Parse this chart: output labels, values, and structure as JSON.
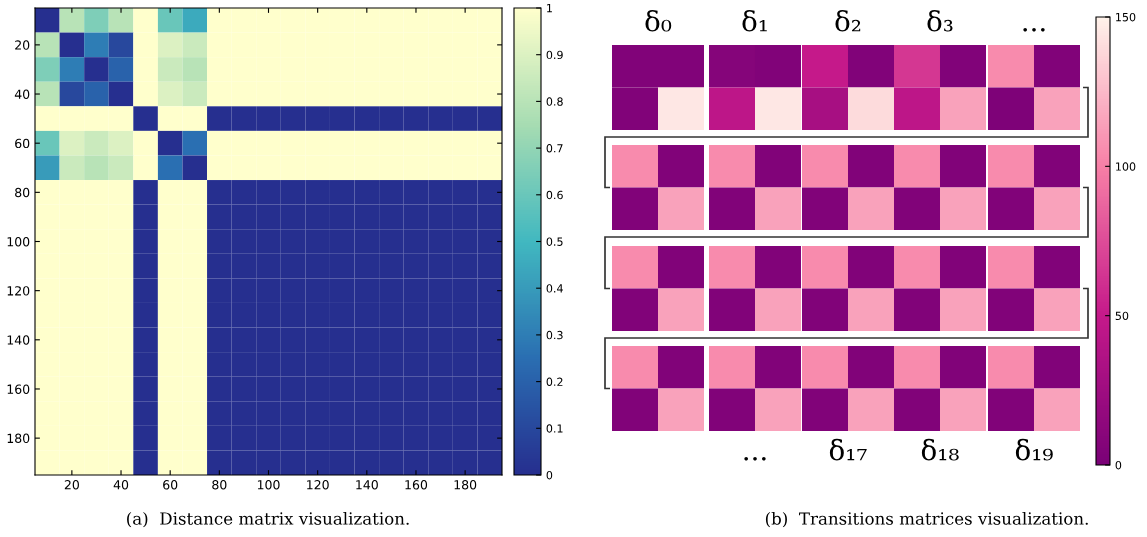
{
  "chart_data": [
    {
      "type": "heatmap",
      "x": [
        10,
        20,
        30,
        40,
        50,
        60,
        70,
        80,
        90,
        100,
        110,
        120,
        130,
        140,
        150,
        160,
        170,
        180,
        190
      ],
      "y": [
        10,
        20,
        30,
        40,
        50,
        60,
        70,
        80,
        90,
        100,
        110,
        120,
        130,
        140,
        150,
        160,
        170,
        180,
        190
      ],
      "xlim": [
        5,
        195
      ],
      "ylim": [
        195,
        5
      ],
      "xticks": [
        20,
        40,
        60,
        80,
        100,
        120,
        140,
        160,
        180
      ],
      "yticks": [
        20,
        40,
        60,
        80,
        100,
        120,
        140,
        160,
        180
      ],
      "clim": [
        0,
        1
      ],
      "cticks": [
        0,
        0.1,
        0.2,
        0.3,
        0.4,
        0.5,
        0.6,
        0.7,
        0.8,
        0.9,
        1
      ],
      "cells": [
        [
          0,
          0.8,
          0.65,
          0.8,
          1,
          0.6,
          0.45,
          1,
          1,
          1,
          1,
          1,
          1,
          1,
          1,
          1,
          1,
          1,
          1
        ],
        [
          0.8,
          0,
          0.3,
          0.1,
          1,
          0.9,
          0.85,
          1,
          1,
          1,
          1,
          1,
          1,
          1,
          1,
          1,
          1,
          1,
          1
        ],
        [
          0.65,
          0.3,
          0,
          0.2,
          1,
          0.85,
          0.8,
          1,
          1,
          1,
          1,
          1,
          1,
          1,
          1,
          1,
          1,
          1,
          1
        ],
        [
          0.8,
          0.1,
          0.2,
          0,
          1,
          0.9,
          0.85,
          1,
          1,
          1,
          1,
          1,
          1,
          1,
          1,
          1,
          1,
          1,
          1
        ],
        [
          1,
          1,
          1,
          1,
          0,
          1,
          1,
          0,
          0,
          0,
          0,
          0,
          0,
          0,
          0,
          0,
          0,
          0,
          0
        ],
        [
          0.6,
          0.9,
          0.85,
          0.9,
          1,
          0,
          0.25,
          1,
          1,
          1,
          1,
          1,
          1,
          1,
          1,
          1,
          1,
          1,
          1
        ],
        [
          0.4,
          0.85,
          0.8,
          0.85,
          1,
          0.25,
          0,
          1,
          1,
          1,
          1,
          1,
          1,
          1,
          1,
          1,
          1,
          1,
          1
        ],
        [
          1,
          1,
          1,
          1,
          0,
          1,
          1,
          0,
          0,
          0,
          0,
          0,
          0,
          0,
          0,
          0,
          0,
          0,
          0
        ],
        [
          1,
          1,
          1,
          1,
          0,
          1,
          1,
          0,
          0,
          0,
          0,
          0,
          0,
          0,
          0,
          0,
          0,
          0,
          0
        ],
        [
          1,
          1,
          1,
          1,
          0,
          1,
          1,
          0,
          0,
          0,
          0,
          0,
          0,
          0,
          0,
          0,
          0,
          0,
          0
        ],
        [
          1,
          1,
          1,
          1,
          0,
          1,
          1,
          0,
          0,
          0,
          0,
          0,
          0,
          0,
          0,
          0,
          0,
          0,
          0
        ],
        [
          1,
          1,
          1,
          1,
          0,
          1,
          1,
          0,
          0,
          0,
          0,
          0,
          0,
          0,
          0,
          0,
          0,
          0,
          0
        ],
        [
          1,
          1,
          1,
          1,
          0,
          1,
          1,
          0,
          0,
          0,
          0,
          0,
          0,
          0,
          0,
          0,
          0,
          0,
          0
        ],
        [
          1,
          1,
          1,
          1,
          0,
          1,
          1,
          0,
          0,
          0,
          0,
          0,
          0,
          0,
          0,
          0,
          0,
          0,
          0
        ],
        [
          1,
          1,
          1,
          1,
          0,
          1,
          1,
          0,
          0,
          0,
          0,
          0,
          0,
          0,
          0,
          0,
          0,
          0,
          0
        ],
        [
          1,
          1,
          1,
          1,
          0,
          1,
          1,
          0,
          0,
          0,
          0,
          0,
          0,
          0,
          0,
          0,
          0,
          0,
          0
        ],
        [
          1,
          1,
          1,
          1,
          0,
          1,
          1,
          0,
          0,
          0,
          0,
          0,
          0,
          0,
          0,
          0,
          0,
          0,
          0
        ],
        [
          1,
          1,
          1,
          1,
          0,
          1,
          1,
          0,
          0,
          0,
          0,
          0,
          0,
          0,
          0,
          0,
          0,
          0,
          0
        ],
        [
          1,
          1,
          1,
          1,
          0,
          1,
          1,
          0,
          0,
          0,
          0,
          0,
          0,
          0,
          0,
          0,
          0,
          0,
          0
        ]
      ],
      "annotations": [
        "(a)  Distance matrix visualization."
      ]
    },
    {
      "type": "heatmap",
      "categories": [
        null,
        null,
        null,
        null,
        null,
        null,
        null,
        null,
        null,
        null
      ],
      "y_categories": [
        null,
        null,
        null,
        null,
        null,
        null,
        null,
        null
      ],
      "clim": [
        0,
        150
      ],
      "cticks": [
        0,
        50,
        100,
        150
      ],
      "cells": [
        [
          5,
          5,
          8,
          5,
          50,
          5,
          65,
          5,
          105,
          5
        ],
        [
          5,
          145,
          45,
          145,
          30,
          140,
          45,
          115,
          3,
          115
        ],
        [
          105,
          5,
          105,
          5,
          105,
          5,
          105,
          5,
          105,
          5
        ],
        [
          5,
          115,
          5,
          115,
          5,
          115,
          5,
          115,
          5,
          115
        ],
        [
          105,
          5,
          105,
          5,
          105,
          5,
          105,
          5,
          105,
          5
        ],
        [
          5,
          115,
          5,
          115,
          5,
          115,
          5,
          115,
          5,
          115
        ],
        [
          105,
          5,
          105,
          5,
          105,
          5,
          105,
          5,
          105,
          5
        ],
        [
          5,
          115,
          5,
          115,
          5,
          115,
          5,
          115,
          5,
          115
        ]
      ],
      "annotations": [
        "δ₀",
        "δ₁",
        "δ₂",
        "δ₃",
        "...",
        "...",
        "δ₁₇",
        "δ₁₈",
        "δ₁₉",
        "(b)  Transitions matrices visualization."
      ]
    }
  ]
}
